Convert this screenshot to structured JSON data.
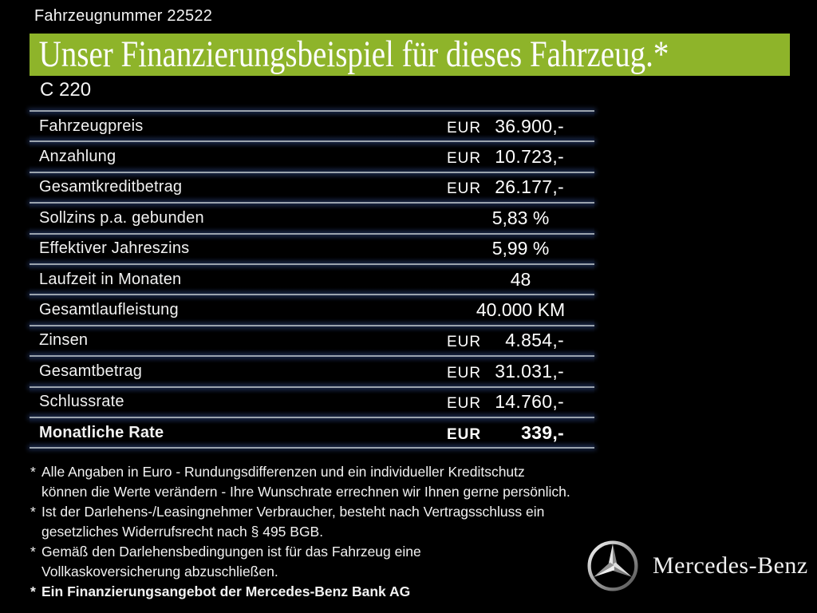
{
  "colors": {
    "background": "#000000",
    "accent_green": "#8EB42A",
    "separator_gray": "#9BA4AE",
    "separator_glow_navy": "#1C2B4E",
    "text_white": "#F2F2F2"
  },
  "header": {
    "vehicle_number": "Fahrzeugnummer 22522",
    "title": "Unser Finanzierungsbeispiel für dieses Fahrzeug.*",
    "model": "C 220"
  },
  "table": {
    "rows": [
      {
        "label": "Fahrzeugpreis",
        "currency": "EUR",
        "value": "36.900,-",
        "bold": false
      },
      {
        "label": "Anzahlung",
        "currency": "EUR",
        "value": "10.723,-",
        "bold": false
      },
      {
        "label": "Gesamtkreditbetrag",
        "currency": "EUR",
        "value": "26.177,-",
        "bold": false
      },
      {
        "label": "Sollzins p.a. gebunden",
        "currency": "",
        "value": "5,83 %",
        "bold": false
      },
      {
        "label": "Effektiver Jahreszins",
        "currency": "",
        "value": "5,99 %",
        "bold": false
      },
      {
        "label": "Laufzeit in Monaten",
        "currency": "",
        "value": "48",
        "bold": false
      },
      {
        "label": "Gesamtlaufleistung",
        "currency": "",
        "value": "40.000 KM",
        "bold": false
      },
      {
        "label": "Zinsen",
        "currency": "EUR",
        "value": "4.854,-",
        "bold": false
      },
      {
        "label": "Gesamtbetrag",
        "currency": "EUR",
        "value": "31.031,-",
        "bold": false
      },
      {
        "label": "Schlussrate",
        "currency": "EUR",
        "value": "14.760,-",
        "bold": false
      },
      {
        "label": "Monatliche Rate",
        "currency": "EUR",
        "value": "339,-",
        "bold": true
      }
    ]
  },
  "footnotes": [
    {
      "marker": "*",
      "lines": [
        "Alle Angaben in Euro - Rundungsdifferenzen und ein individueller Kreditschutz",
        "können die Werte verändern - Ihre Wunschrate errechnen wir Ihnen gerne persönlich."
      ],
      "bold": false
    },
    {
      "marker": "*",
      "lines": [
        "Ist der Darlehens-/Leasingnehmer Verbraucher, besteht nach Vertragsschluss ein",
        "gesetzliches  Widerrufsrecht nach § 495 BGB."
      ],
      "bold": false
    },
    {
      "marker": "*",
      "lines": [
        "Gemäß den Darlehensbedingungen ist für das Fahrzeug eine",
        "Vollkaskoversicherung abzuschließen."
      ],
      "bold": false
    },
    {
      "marker": "*",
      "lines": [
        "Ein Finanzierungsangebot der Mercedes-Benz Bank AG"
      ],
      "bold": true
    }
  ],
  "brand": {
    "logo": "mercedes-star",
    "name": "Mercedes-Benz"
  }
}
